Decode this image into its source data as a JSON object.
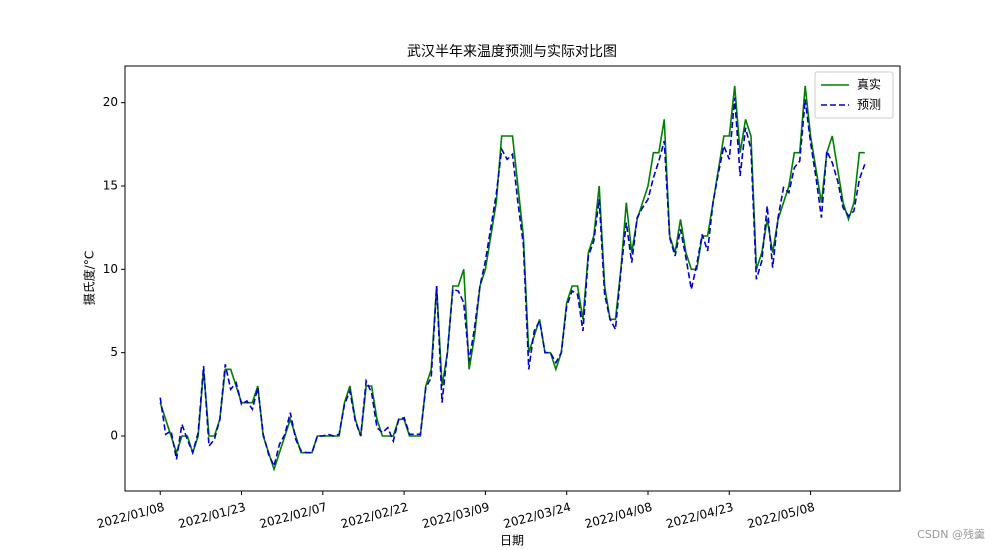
{
  "chart_data": {
    "type": "line",
    "title": "武汉半年来温度预测与实际对比图",
    "xlabel": "日期",
    "ylabel": "摄氏度/°C",
    "watermark": "CSDN @残羹",
    "x": [
      "2022/01/08",
      "2022/01/09",
      "2022/01/10",
      "2022/01/11",
      "2022/01/12",
      "2022/01/13",
      "2022/01/14",
      "2022/01/15",
      "2022/01/16",
      "2022/01/17",
      "2022/01/18",
      "2022/01/19",
      "2022/01/20",
      "2022/01/21",
      "2022/01/22",
      "2022/01/23",
      "2022/01/24",
      "2022/01/25",
      "2022/01/26",
      "2022/01/27",
      "2022/01/28",
      "2022/01/29",
      "2022/01/30",
      "2022/01/31",
      "2022/02/01",
      "2022/02/02",
      "2022/02/03",
      "2022/02/04",
      "2022/02/05",
      "2022/02/06",
      "2022/02/07",
      "2022/02/08",
      "2022/02/09",
      "2022/02/10",
      "2022/02/11",
      "2022/02/12",
      "2022/02/13",
      "2022/02/14",
      "2022/02/15",
      "2022/02/16",
      "2022/02/17",
      "2022/02/18",
      "2022/02/19",
      "2022/02/20",
      "2022/02/21",
      "2022/02/22",
      "2022/02/23",
      "2022/02/24",
      "2022/02/25",
      "2022/02/26",
      "2022/02/27",
      "2022/02/28",
      "2022/03/01",
      "2022/03/02",
      "2022/03/03",
      "2022/03/04",
      "2022/03/05",
      "2022/03/06",
      "2022/03/07",
      "2022/03/08",
      "2022/03/09",
      "2022/03/10",
      "2022/03/11",
      "2022/03/12",
      "2022/03/13",
      "2022/03/14",
      "2022/03/15",
      "2022/03/16",
      "2022/03/17",
      "2022/03/18",
      "2022/03/19",
      "2022/03/20",
      "2022/03/21",
      "2022/03/22",
      "2022/03/23",
      "2022/03/24",
      "2022/03/25",
      "2022/03/26",
      "2022/03/27",
      "2022/03/28",
      "2022/03/29",
      "2022/03/30",
      "2022/03/31",
      "2022/04/01",
      "2022/04/02",
      "2022/04/03",
      "2022/04/04",
      "2022/04/05",
      "2022/04/06",
      "2022/04/07",
      "2022/04/08",
      "2022/04/09",
      "2022/04/10",
      "2022/04/11",
      "2022/04/12",
      "2022/04/13",
      "2022/04/14",
      "2022/04/15",
      "2022/04/16",
      "2022/04/17",
      "2022/04/18",
      "2022/04/19",
      "2022/04/20",
      "2022/04/21",
      "2022/04/22",
      "2022/04/23",
      "2022/04/24",
      "2022/04/25",
      "2022/04/26",
      "2022/04/27",
      "2022/04/28",
      "2022/04/29",
      "2022/04/30",
      "2022/05/01",
      "2022/05/02",
      "2022/05/03",
      "2022/05/04",
      "2022/05/05",
      "2022/05/06",
      "2022/05/07",
      "2022/05/08",
      "2022/05/09",
      "2022/05/10",
      "2022/05/11",
      "2022/05/12",
      "2022/05/13",
      "2022/05/14",
      "2022/05/15",
      "2022/05/16",
      "2022/05/17",
      "2022/05/18"
    ],
    "series": [
      {
        "name": "真实",
        "color": "#008000",
        "linestyle": "solid",
        "values": [
          2,
          1,
          0,
          -1,
          0,
          0,
          -1,
          0,
          4,
          0,
          0,
          1,
          4,
          4,
          3,
          2,
          2,
          2,
          3,
          0,
          -1,
          -2,
          -1,
          0,
          1,
          0,
          -1,
          -1,
          -1,
          0,
          0,
          0,
          0,
          0,
          2,
          3,
          1,
          0,
          3,
          3,
          1,
          0,
          0,
          0,
          1,
          1,
          0,
          0,
          0,
          3,
          4,
          9,
          3,
          5,
          9,
          9,
          10,
          4,
          6,
          9,
          10,
          12,
          14,
          18,
          18,
          18,
          15,
          12,
          5,
          6,
          7,
          5,
          5,
          4,
          5,
          8,
          9,
          9,
          7,
          11,
          12,
          15,
          9,
          7,
          7,
          10,
          14,
          11,
          13,
          14,
          15,
          17,
          17,
          19,
          12,
          11,
          13,
          11,
          10,
          10,
          12,
          12,
          14,
          16,
          18,
          18,
          21,
          17,
          19,
          18,
          10,
          11,
          13,
          11,
          13,
          14,
          15,
          17,
          17,
          21,
          18,
          16,
          14,
          17,
          18,
          16,
          14,
          13,
          14,
          17,
          17
        ]
      },
      {
        "name": "预测",
        "color": "#0000cc",
        "linestyle": "dashed",
        "values": [
          2.3,
          0.1,
          0.3,
          -1.4,
          0.7,
          -0.2,
          -1.0,
          0.2,
          4.2,
          -0.6,
          -0.2,
          1.0,
          4.3,
          2.8,
          3.2,
          1.9,
          2.1,
          1.6,
          2.9,
          0.1,
          -1.1,
          -1.8,
          -0.5,
          0.1,
          1.4,
          -0.2,
          -0.9,
          -1.0,
          -1.0,
          0.0,
          0.0,
          0.1,
          0.0,
          0.1,
          1.9,
          2.7,
          0.9,
          0.0,
          3.3,
          2.6,
          0.5,
          0.2,
          0.5,
          -0.3,
          1.0,
          1.1,
          0.1,
          0.1,
          0.1,
          2.9,
          3.5,
          9.0,
          2.0,
          5.1,
          8.8,
          8.7,
          8.0,
          4.5,
          6.5,
          9.0,
          10.5,
          12.5,
          14.5,
          17.2,
          16.6,
          16.9,
          14.0,
          11.5,
          4.0,
          6.3,
          6.9,
          5.0,
          5.0,
          4.4,
          5.0,
          7.8,
          8.7,
          8.5,
          6.3,
          10.8,
          11.7,
          14.2,
          8.5,
          7.0,
          6.4,
          9.9,
          12.8,
          10.4,
          13.1,
          13.7,
          14.2,
          15.5,
          16.5,
          17.7,
          11.9,
          10.8,
          12.4,
          10.7,
          8.8,
          10.3,
          12.1,
          11.1,
          14.0,
          15.8,
          17.4,
          16.6,
          20.3,
          15.6,
          18.5,
          17.2,
          9.4,
          10.5,
          13.8,
          10.1,
          13.1,
          14.9,
          14.6,
          16.1,
          16.5,
          20.2,
          17.6,
          15.5,
          13.1,
          17.1,
          16.4,
          15.3,
          13.7,
          13.2,
          13.5,
          15.4,
          16.3
        ]
      }
    ],
    "xticks": [
      "2022/01/08",
      "2022/01/23",
      "2022/02/07",
      "2022/02/22",
      "2022/03/09",
      "2022/03/24",
      "2022/04/08",
      "2022/04/23",
      "2022/05/08"
    ],
    "ylim": [
      -3.3,
      22.2
    ],
    "yticks": [
      0,
      5,
      10,
      15,
      20
    ],
    "legend": "upper right",
    "grid": false
  }
}
